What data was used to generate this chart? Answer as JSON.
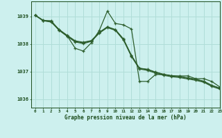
{
  "title": "Graphe pression niveau de la mer (hPa)",
  "background_color": "#cdf0ee",
  "grid_color": "#b0ddd8",
  "line_color": "#2d5e2d",
  "text_color": "#1a4a1a",
  "xlim": [
    -0.5,
    23
  ],
  "ylim": [
    1035.7,
    1039.55
  ],
  "yticks": [
    1036,
    1037,
    1038,
    1039
  ],
  "xticks": [
    0,
    1,
    2,
    3,
    4,
    5,
    6,
    7,
    8,
    9,
    10,
    11,
    12,
    13,
    14,
    15,
    16,
    17,
    18,
    19,
    20,
    21,
    22,
    23
  ],
  "series": [
    [
      1039.05,
      1038.85,
      1038.85,
      1038.5,
      1038.3,
      1037.85,
      1037.75,
      1038.05,
      1038.5,
      1039.2,
      1038.75,
      1038.7,
      1038.55,
      1036.65,
      1036.65,
      1036.9,
      1036.9,
      1036.85,
      1036.85,
      1036.85,
      1036.75,
      1036.75,
      1036.65,
      1036.45
    ],
    [
      1039.05,
      1038.85,
      1038.82,
      1038.52,
      1038.3,
      1038.1,
      1038.05,
      1038.12,
      1038.42,
      1038.62,
      1038.52,
      1038.18,
      1037.58,
      1037.12,
      1037.08,
      1036.98,
      1036.9,
      1036.85,
      1036.82,
      1036.77,
      1036.72,
      1036.65,
      1036.5,
      1036.4
    ],
    [
      1039.05,
      1038.85,
      1038.8,
      1038.5,
      1038.28,
      1038.08,
      1038.02,
      1038.1,
      1038.4,
      1038.6,
      1038.5,
      1038.15,
      1037.55,
      1037.1,
      1037.05,
      1036.95,
      1036.87,
      1036.82,
      1036.79,
      1036.74,
      1036.69,
      1036.62,
      1036.47,
      1036.37
    ],
    [
      1039.05,
      1038.87,
      1038.83,
      1038.53,
      1038.32,
      1038.12,
      1038.07,
      1038.13,
      1038.43,
      1038.63,
      1038.53,
      1038.19,
      1037.59,
      1037.13,
      1037.09,
      1036.99,
      1036.91,
      1036.86,
      1036.83,
      1036.78,
      1036.73,
      1036.66,
      1036.51,
      1036.41
    ]
  ]
}
